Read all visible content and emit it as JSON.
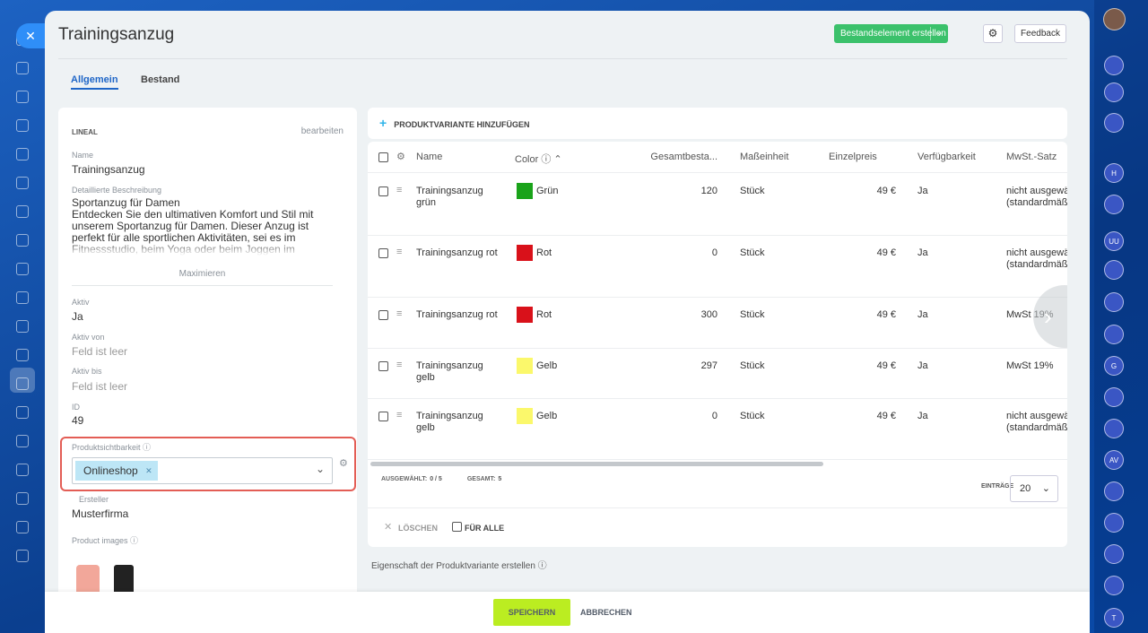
{
  "header": {
    "title": "Trainingsanzug",
    "create_button": "Bestandselement erstellen",
    "feedback": "Feedback"
  },
  "tabs": [
    "Allgemein",
    "Bestand"
  ],
  "details": {
    "section": "LINEAL",
    "edit": "bearbeiten",
    "fields": [
      {
        "label": "Name",
        "value": "Trainingsanzug"
      },
      {
        "label": "Detaillierte Beschreibung",
        "value": "Sportanzug für Damen\nEntdecken Sie den ultimativen Komfort und Stil mit unserem Sportanzug für Damen. Dieser Anzug ist perfekt für alle sportlichen Aktivitäten, sei es im Fitnessstudio, beim Yoga oder beim Joggen im Freien."
      },
      {
        "label": "Aktiv",
        "value": "Ja"
      },
      {
        "label": "Aktiv von",
        "value": "Feld ist leer"
      },
      {
        "label": "Aktiv bis",
        "value": "Feld ist leer"
      },
      {
        "label": "ID",
        "value": "49"
      }
    ],
    "maximize": "Maximieren",
    "visibility": {
      "label": "Produktsichtbarkeit",
      "tag": "Onlineshop"
    },
    "creator": {
      "label": "Ersteller",
      "value": "Musterfirma"
    },
    "images_label": "Product images"
  },
  "variants": {
    "add": "PRODUKTVARIANTE HINZUFÜGEN",
    "columns": [
      "Name",
      "Color",
      "Gesamtbesta...",
      "Maßeinheit",
      "Einzelpreis",
      "Verfügbarkeit",
      "MwSt.-Satz"
    ],
    "rows": [
      [
        "Trainingsanzug grün",
        "Grün",
        "120",
        "Stück",
        "49 €",
        "Ja",
        "nicht ausgewählt (standardmäßig)"
      ],
      [
        "Trainingsanzug rot",
        "Rot",
        "0",
        "Stück",
        "49 €",
        "Ja",
        "nicht ausgewählt (standardmäßig)"
      ],
      [
        "Trainingsanzug rot",
        "Rot",
        "300",
        "Stück",
        "49 €",
        "Ja",
        "MwSt 19%"
      ],
      [
        "Trainingsanzug gelb",
        "Gelb",
        "297",
        "Stück",
        "49 €",
        "Ja",
        "MwSt 19%"
      ],
      [
        "Trainingsanzug gelb",
        "Gelb",
        "0",
        "Stück",
        "49 €",
        "Ja",
        "nicht ausgewählt (standardmäßig)"
      ]
    ],
    "swatches": [
      "#1aa31a",
      "#d9111a",
      "#d9111a",
      "#fbf86b",
      "#fbf86b"
    ],
    "selected_label": "AUSGEWÄHLT:",
    "selected": "0 / 5",
    "total_label": "GESAMT:",
    "total": "5",
    "entries_label": "EINTRÄGE",
    "entries": "20",
    "delete": "LÖSCHEN",
    "for_all": "FÜR ALLE",
    "create_property": "Eigenschaft der Produktvariante erstellen"
  },
  "footer": {
    "save": "SPEICHERN",
    "cancel": "ABBRECHEN"
  },
  "sidebar_avatars": [
    "H",
    "UU",
    "G",
    "AV",
    "T"
  ]
}
